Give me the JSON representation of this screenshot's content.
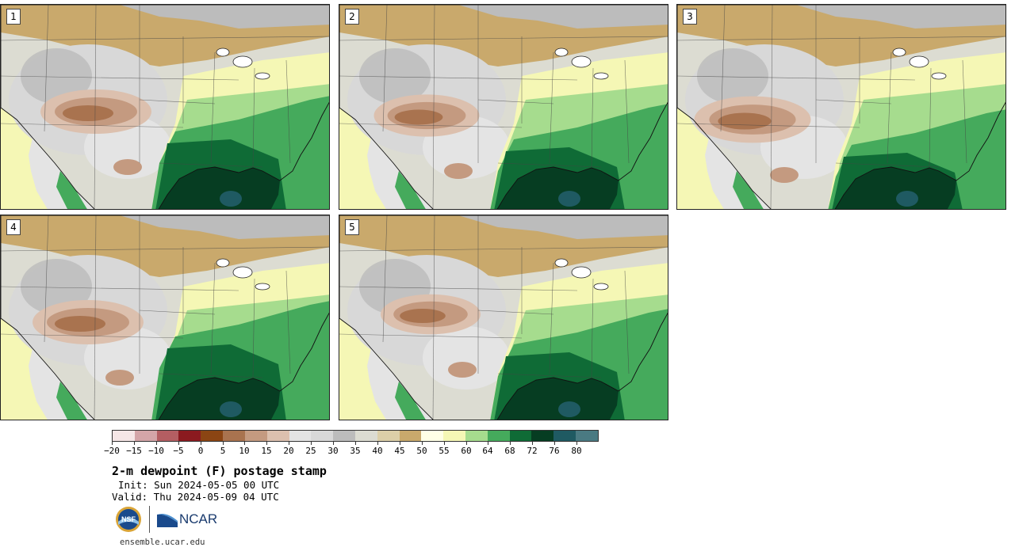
{
  "panels": [
    {
      "label": "1"
    },
    {
      "label": "2"
    },
    {
      "label": "3"
    },
    {
      "label": "4"
    },
    {
      "label": "5"
    }
  ],
  "colorbar": {
    "colors": [
      "#f5e6e6",
      "#d4a5a8",
      "#b45e62",
      "#8b1a1f",
      "#8b4513",
      "#a9734f",
      "#c49a80",
      "#dcc0ae",
      "#e4e4e4",
      "#d8d8d8",
      "#bcbcbc",
      "#dcdcd2",
      "#dccfa8",
      "#c9a96c",
      "#ffffe6",
      "#f5f7b5",
      "#a6dc8e",
      "#45aa5c",
      "#0f6b36",
      "#063d22",
      "#1f5a62",
      "#4a7a82"
    ],
    "tick_labels": [
      "−20",
      "−15",
      "−10",
      "−5",
      "0",
      "5",
      "10",
      "15",
      "20",
      "25",
      "30",
      "35",
      "40",
      "45",
      "50",
      "55",
      "60",
      "64",
      "68",
      "72",
      "76",
      "80"
    ]
  },
  "title": "2-m dewpoint (F) postage stamp",
  "init": "Init: Sun 2024-05-05 00 UTC",
  "valid": "Valid: Thu 2024-05-09 04 UTC",
  "logos": {
    "nsf": "NSF",
    "ncar": "NCAR"
  },
  "url": "ensemble.ucar.edu"
}
